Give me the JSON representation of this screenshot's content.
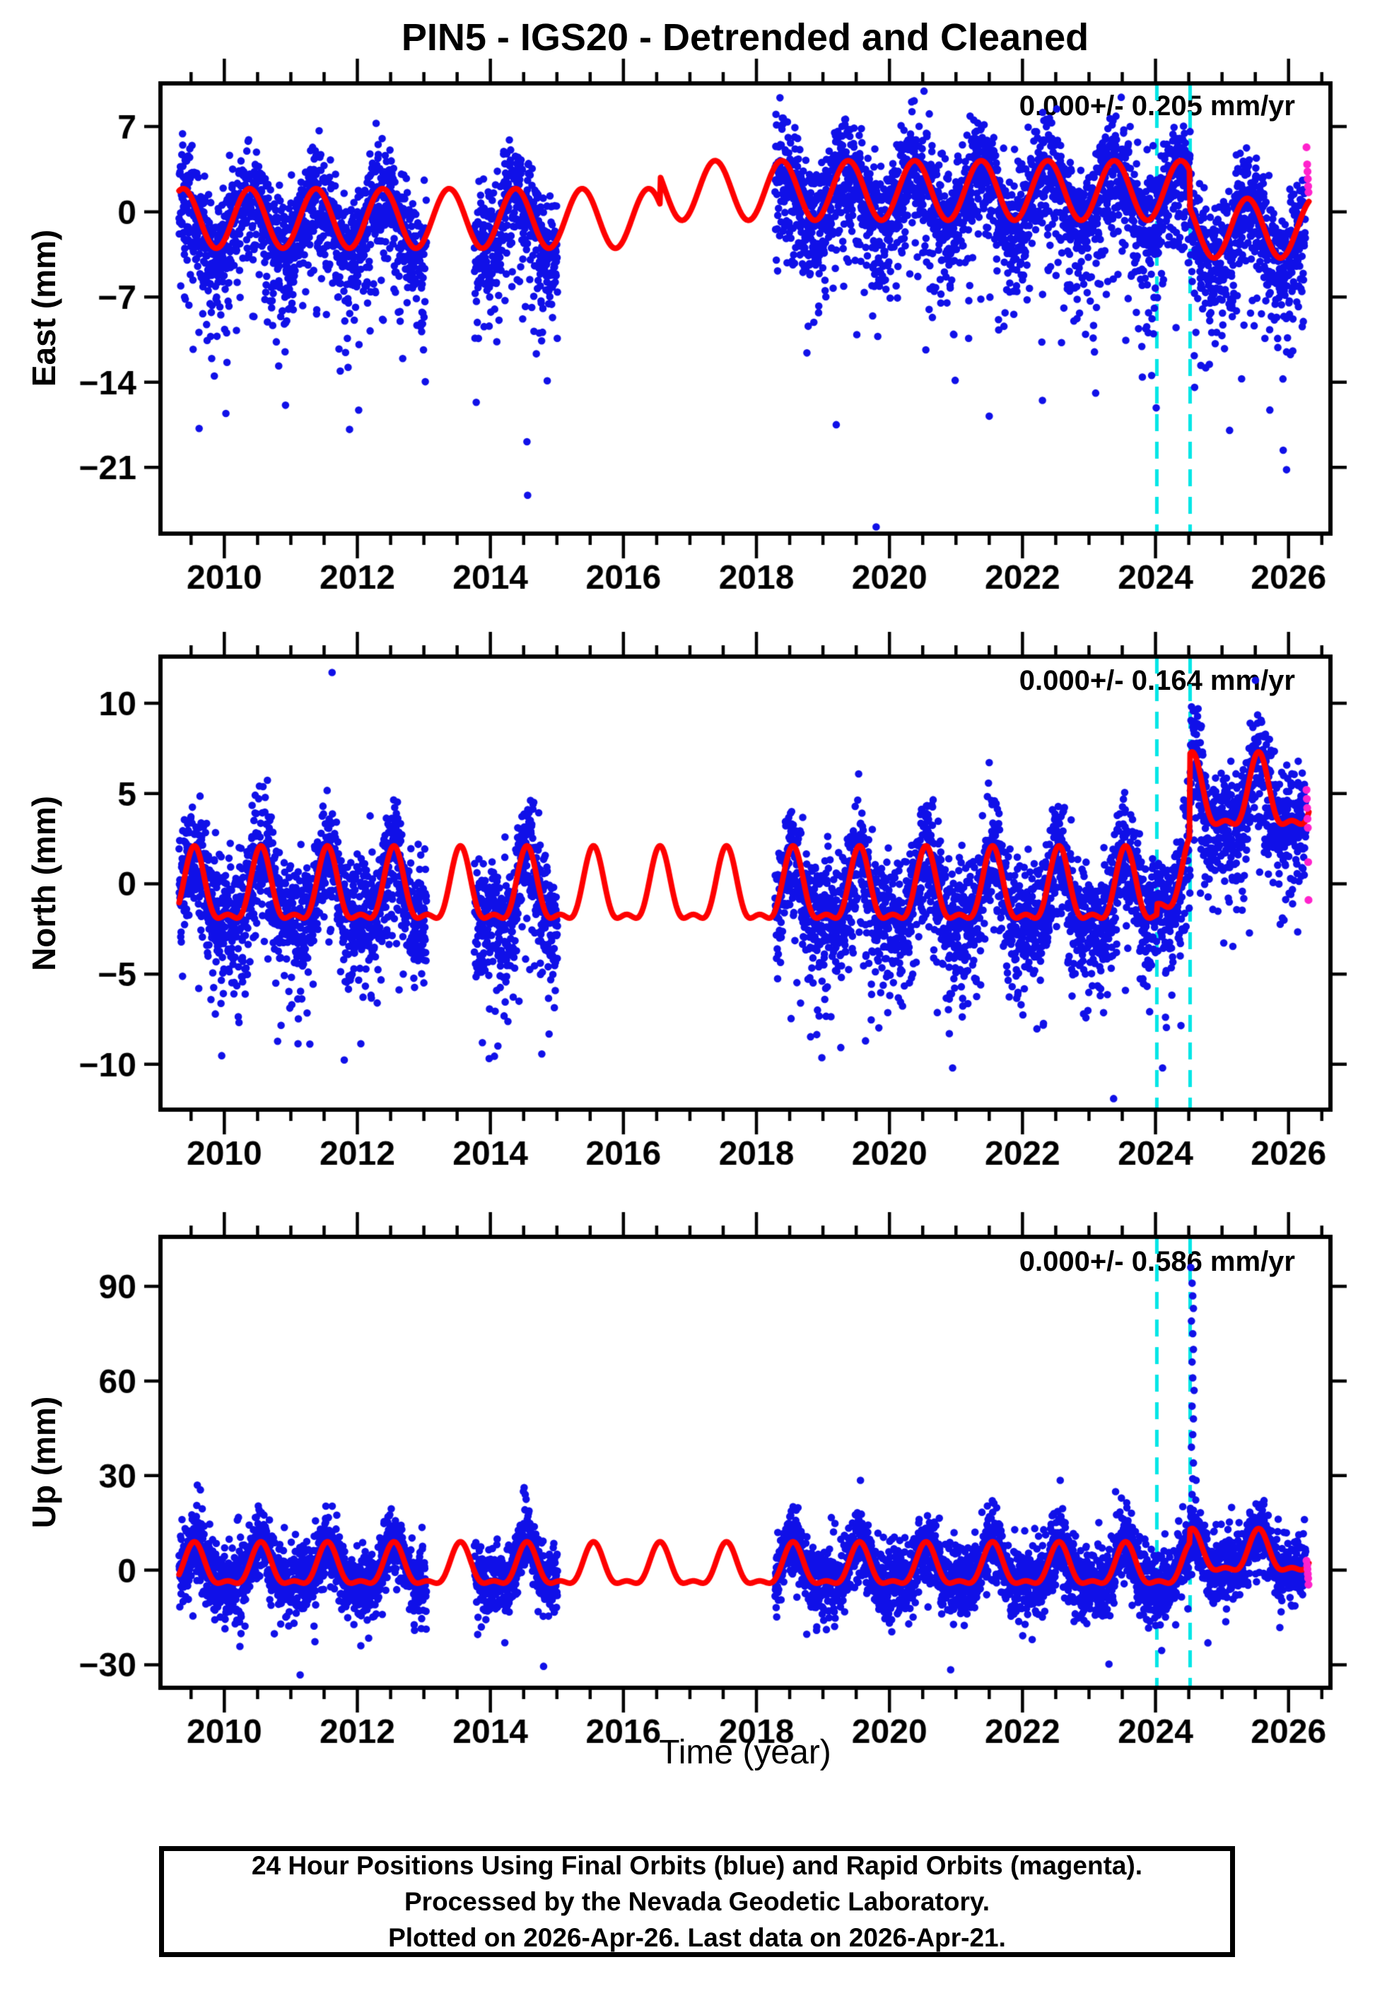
{
  "title": "PIN5 - IGS20 - Detrended and Cleaned",
  "xlabel": "Time (year)",
  "caption": {
    "line1": "24 Hour Positions Using Final Orbits (blue) and Rapid Orbits (magenta).",
    "line2": "Processed by the Nevada Geodetic Laboratory.",
    "line3": "Plotted on 2026-Apr-26. Last data on 2026-Apr-21."
  },
  "colors": {
    "final_orbits_blue": "#1010e8",
    "rapid_orbits_magenta": "#ff22cc",
    "model_curve_red": "#fe0000",
    "event_line_cyan": "#00e6e6",
    "axis": "#000000"
  },
  "x_axis": {
    "lim": [
      2009.04,
      2026.63
    ],
    "tick_labels": [
      "2010",
      "2012",
      "2014",
      "2016",
      "2018",
      "2020",
      "2022",
      "2024",
      "2026"
    ],
    "tick_values": [
      2010,
      2012,
      2014,
      2016,
      2018,
      2020,
      2022,
      2024,
      2026
    ],
    "minor_step": 0.5,
    "major_step": 2
  },
  "event_lines": [
    2024.02,
    2024.52
  ],
  "data_epochs": [
    [
      2009.32,
      2013.04
    ],
    [
      2013.76,
      2015.01
    ],
    [
      2018.28,
      2026.26
    ]
  ],
  "chart_data": [
    {
      "type": "scatter",
      "name": "east",
      "ylabel": "East (mm)",
      "annotation": "0.000+/- 0.205 mm/yr",
      "ylim": [
        -26.45,
        10.55
      ],
      "ytick_labels": [
        "7",
        "0",
        "−7",
        "−14",
        "−21"
      ],
      "ytick_values": [
        7,
        0,
        -7,
        -14,
        -21
      ],
      "model": {
        "mean": -0.55,
        "annual_amp": 2.45,
        "annual_phase": 0.13,
        "semi_amp": 0.0,
        "semi_phase": 0.0,
        "steps": [
          [
            2016.55,
            2.3
          ],
          [
            2024.52,
            -3.1
          ]
        ]
      },
      "scatter": {
        "seed": 11,
        "sigma": 2.0,
        "tail1_p": 0.3,
        "tail1_scale": 2.8,
        "tail2_p": 0.06,
        "tail2_base": 3.5,
        "tail2_scale": 4.0,
        "tail_sign": -1,
        "clip": [
          -20.5,
          10.3
        ]
      },
      "outliers": [
        [
          2014.56,
          -23.3
        ],
        [
          2019.8,
          -25.9
        ],
        [
          2009.85,
          -13.5
        ],
        [
          2010.92,
          -15.9
        ],
        [
          2012.02,
          -16.3
        ],
        [
          2014.55,
          -18.9
        ],
        [
          2025.92,
          -19.6
        ],
        [
          2025.97,
          -21.2
        ],
        [
          2019.2,
          -17.5
        ],
        [
          2021.5,
          -16.8
        ],
        [
          2022.3,
          -15.5
        ],
        [
          2023.1,
          -14.9
        ]
      ],
      "rapid_points": [
        [
          2026.27,
          5.3
        ],
        [
          2026.28,
          3.9
        ],
        [
          2026.285,
          3.3
        ],
        [
          2026.29,
          2.7
        ],
        [
          2026.295,
          2.1
        ],
        [
          2026.3,
          1.6
        ]
      ]
    },
    {
      "type": "scatter",
      "name": "north",
      "ylabel": "North (mm)",
      "annotation": "0.000+/- 0.164 mm/yr",
      "ylim": [
        -12.51,
        12.58
      ],
      "ytick_labels": [
        "10",
        "5",
        "0",
        "−5",
        "−10"
      ],
      "ytick_values": [
        10,
        5,
        0,
        -5,
        -10
      ],
      "model": {
        "mean": -0.55,
        "annual_amp": 1.9,
        "annual_phase": 0.3,
        "semi_amp": 0.75,
        "semi_phase": 0.425,
        "steps": [
          [
            2024.02,
            0.6
          ],
          [
            2024.52,
            4.6
          ]
        ]
      },
      "scatter": {
        "seed": 23,
        "sigma": 1.5,
        "tail1_p": 0.25,
        "tail1_scale": 1.6,
        "tail2_p": 0.05,
        "tail2_base": 1.5,
        "tail2_scale": 2.2,
        "tail_sign": -1,
        "clip": [
          -10.2,
          12.4
        ]
      },
      "outliers": [
        [
          2011.62,
          11.7
        ],
        [
          2023.37,
          -11.9
        ],
        [
          2013.88,
          -8.8
        ],
        [
          2019.64,
          -8.7
        ],
        [
          2020.9,
          -8.3
        ]
      ],
      "rapid_points": [
        [
          2026.27,
          5.2
        ],
        [
          2026.275,
          4.7
        ],
        [
          2026.28,
          4.2
        ],
        [
          2026.285,
          3.6
        ],
        [
          2026.29,
          3.1
        ],
        [
          2026.295,
          1.2
        ],
        [
          2026.3,
          -0.9
        ]
      ]
    },
    {
      "type": "scatter",
      "name": "up",
      "ylabel": "Up (mm)",
      "annotation": "0.000+/- 0.586 mm/yr",
      "ylim": [
        -37.3,
        105.7
      ],
      "ytick_labels": [
        "90",
        "60",
        "30",
        "0",
        "−30"
      ],
      "ytick_values": [
        90,
        60,
        30,
        0,
        -30
      ],
      "model": {
        "mean": 0.3,
        "annual_amp": 6.2,
        "annual_phase": 0.3,
        "semi_amp": 2.5,
        "semi_phase": 0.425,
        "steps": [
          [
            2024.52,
            4.2
          ]
        ]
      },
      "scatter": {
        "seed": 37,
        "sigma": 5.2,
        "tail1_p": 0.2,
        "tail1_scale": 3.5,
        "tail2_p": 0.045,
        "tail2_base": 4.0,
        "tail2_scale": 5.5,
        "tail_sign": 0,
        "clip": [
          -29.5,
          28.5
        ]
      },
      "outliers": [
        [
          2011.14,
          -33.2
        ],
        [
          2014.8,
          -30.5
        ],
        [
          2020.92,
          -31.6
        ],
        [
          2023.3,
          -29.8
        ],
        [
          2024.53,
          96
        ],
        [
          2024.55,
          91
        ],
        [
          2024.56,
          87
        ],
        [
          2024.57,
          83
        ],
        [
          2024.54,
          79
        ],
        [
          2024.56,
          75
        ],
        [
          2024.57,
          70
        ],
        [
          2024.55,
          66
        ],
        [
          2024.56,
          61
        ],
        [
          2024.58,
          57
        ],
        [
          2024.55,
          52
        ],
        [
          2024.57,
          48
        ],
        [
          2024.56,
          43
        ],
        [
          2024.54,
          39
        ],
        [
          2024.57,
          34
        ],
        [
          2024.56,
          29
        ],
        [
          2024.55,
          24
        ],
        [
          2024.57,
          19
        ],
        [
          2024.56,
          15
        ]
      ],
      "rapid_points": [
        [
          2026.27,
          3.0
        ],
        [
          2026.28,
          1.5
        ],
        [
          2026.285,
          0.3
        ],
        [
          2026.29,
          -1.2
        ],
        [
          2026.295,
          -2.6
        ],
        [
          2026.3,
          -4.6
        ]
      ]
    }
  ]
}
